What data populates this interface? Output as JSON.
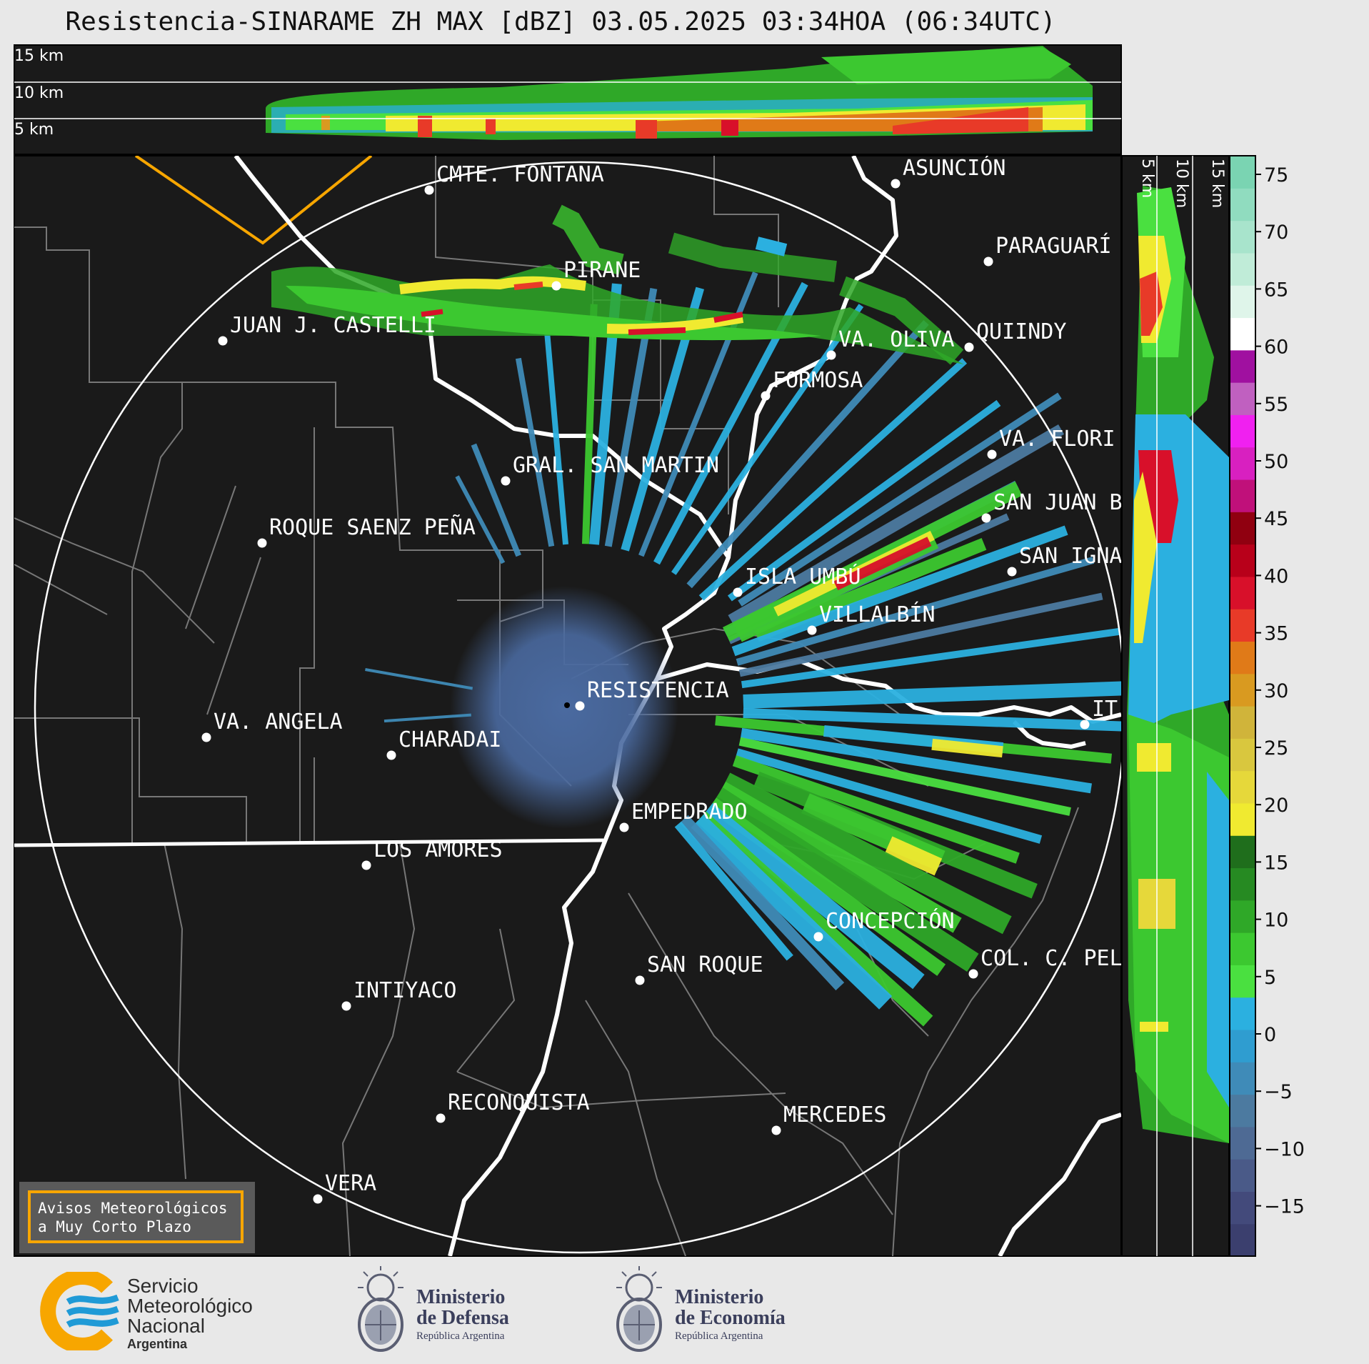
{
  "title": "Resistencia-SINARAME ZH MAX [dBZ] 03.05.2025 03:34HOA (06:34UTC)",
  "top_profile": {
    "height_labels": [
      "15 km",
      "10 km",
      "5 km"
    ]
  },
  "side_profile": {
    "height_labels": [
      "5 km",
      "10 km",
      "15 km"
    ]
  },
  "colorbar": {
    "ticks": [
      "75",
      "70",
      "65",
      "60",
      "55",
      "50",
      "45",
      "40",
      "35",
      "30",
      "25",
      "20",
      "15",
      "10",
      "5",
      "0",
      "−5",
      "−10",
      "−15"
    ],
    "colors": [
      "#3b3f6e",
      "#434a7b",
      "#4a5a88",
      "#4e6a94",
      "#4c7aa0",
      "#3f8bb8",
      "#2f9dd0",
      "#2bb0e0",
      "#4ae040",
      "#3cc830",
      "#2fa828",
      "#268a22",
      "#1f6e1c",
      "#f0ea30",
      "#e6d83a",
      "#d9c73e",
      "#d0b43a",
      "#d99a20",
      "#e07a18",
      "#e83a28",
      "#d8102a",
      "#b8001a",
      "#900010",
      "#c0107a",
      "#d820c0",
      "#f020f0",
      "#c060c0",
      "#a010a0",
      "#ffffff",
      "#dff5ea",
      "#c0ecd8",
      "#a8e4cc",
      "#90dcbf",
      "#7ad4b2"
    ]
  },
  "cities": [
    {
      "name": "CMTE. FONTANA"
    },
    {
      "name": "ASUNCIÓN"
    },
    {
      "name": "PARAGUARÍ"
    },
    {
      "name": "PIRANE"
    },
    {
      "name": "JUAN J. CASTELLI"
    },
    {
      "name": "VA. OLIVA"
    },
    {
      "name": "QUIINDY"
    },
    {
      "name": "FORMOSA"
    },
    {
      "name": "VA. FLORI"
    },
    {
      "name": "GRAL. SAN MARTIN"
    },
    {
      "name": "SAN JUAN B"
    },
    {
      "name": "ROQUE SAENZ PEÑA"
    },
    {
      "name": "SAN IGNA"
    },
    {
      "name": "ISLA UMBÚ"
    },
    {
      "name": "VILLALBÍN"
    },
    {
      "name": "RESISTENCIA"
    },
    {
      "name": "VA. ANGELA"
    },
    {
      "name": "CHARADAI"
    },
    {
      "name": "IT"
    },
    {
      "name": "EMPEDRADO"
    },
    {
      "name": "LOS AMORES"
    },
    {
      "name": "CONCEPCIÓN"
    },
    {
      "name": "SAN ROQUE"
    },
    {
      "name": "COL. C. PEL"
    },
    {
      "name": "INTIYACO"
    },
    {
      "name": "RECONQUISTA"
    },
    {
      "name": "MERCEDES"
    },
    {
      "name": "VERA"
    }
  ],
  "alert_box": {
    "line1": "Avisos Meteorológicos",
    "line2": "a Muy Corto Plazo"
  },
  "logos": {
    "smn": {
      "line1": "Servicio",
      "line2": "Meteorológico",
      "line3": "Nacional",
      "line4": "Argentina",
      "colors": {
        "orange": "#f7a600",
        "blue": "#1f9ad6"
      }
    },
    "defensa": {
      "line1": "Ministerio",
      "line2": "de Defensa",
      "line3": "República Argentina"
    },
    "economia": {
      "line1": "Ministerio",
      "line2": "de Economía",
      "line3": "República Argentina"
    }
  }
}
